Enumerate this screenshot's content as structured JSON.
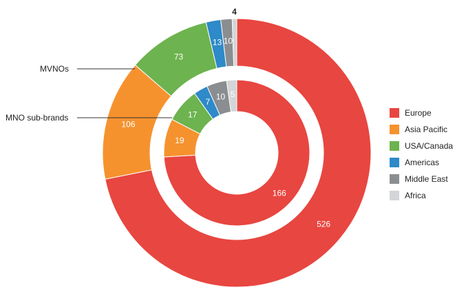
{
  "chart_data": {
    "type": "donut",
    "categories": [
      "Europe",
      "Asia Pacific",
      "USA/Canada",
      "Americas",
      "Middle East",
      "Africa"
    ],
    "colors": {
      "Europe": "#e84640",
      "Asia Pacific": "#f6922e",
      "USA/Canada": "#6db34f",
      "Americas": "#2e8ac8",
      "Middle East": "#8b8e91",
      "Africa": "#d4d5d7"
    },
    "series": [
      {
        "name": "MVNOs",
        "ring": "outer",
        "values": [
          526,
          106,
          73,
          13,
          10,
          4
        ]
      },
      {
        "name": "MNO sub-brands",
        "ring": "inner",
        "values": [
          166,
          19,
          17,
          7,
          10,
          5
        ]
      }
    ],
    "legend_position": "right"
  }
}
